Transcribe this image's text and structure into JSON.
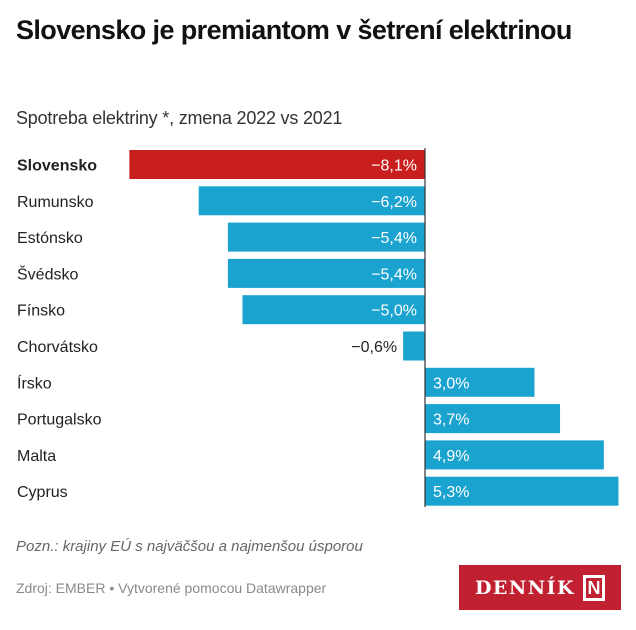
{
  "header": {
    "title": "Slovensko je premiantom v šetrení elektrinou",
    "subtitle": "Spotreba elektriny *, zmena 2022 vs 2021"
  },
  "chart_data": {
    "type": "bar",
    "orientation": "horizontal",
    "categories": [
      "Slovensko",
      "Rumunsko",
      "Estónsko",
      "Švédsko",
      "Fínsko",
      "Chorvátsko",
      "Írsko",
      "Portugalsko",
      "Malta",
      "Cyprus"
    ],
    "values": [
      -8.1,
      -6.2,
      -5.4,
      -5.4,
      -5.0,
      -0.6,
      3.0,
      3.7,
      4.9,
      5.3
    ],
    "value_labels": [
      "−8,1%",
      "−6,2%",
      "−5,4%",
      "−5,4%",
      "−5,0%",
      "−0,6%",
      "3,0%",
      "3,7%",
      "4,9%",
      "5,3%"
    ],
    "highlight": "Slovensko",
    "colors": {
      "highlight": "#c81e1e",
      "default": "#1ba3cf"
    },
    "unit": "%",
    "grid": false
  },
  "footer": {
    "note": "Pozn.: krajiny EÚ s najväčšou a najmenšou úsporou",
    "source": "Zdroj: EMBER • Vytvorené pomocou Datawrapper",
    "logo_text": "DENNÍK N"
  }
}
